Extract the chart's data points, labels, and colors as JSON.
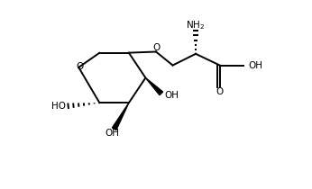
{
  "bg_color": "#ffffff",
  "line_color": "#000000",
  "lw": 1.4,
  "fs": 7.5,
  "figsize": [
    3.46,
    2.1
  ],
  "dpi": 100,
  "xlim": [
    0.0,
    1.1
  ],
  "ylim": [
    0.1,
    1.0
  ]
}
